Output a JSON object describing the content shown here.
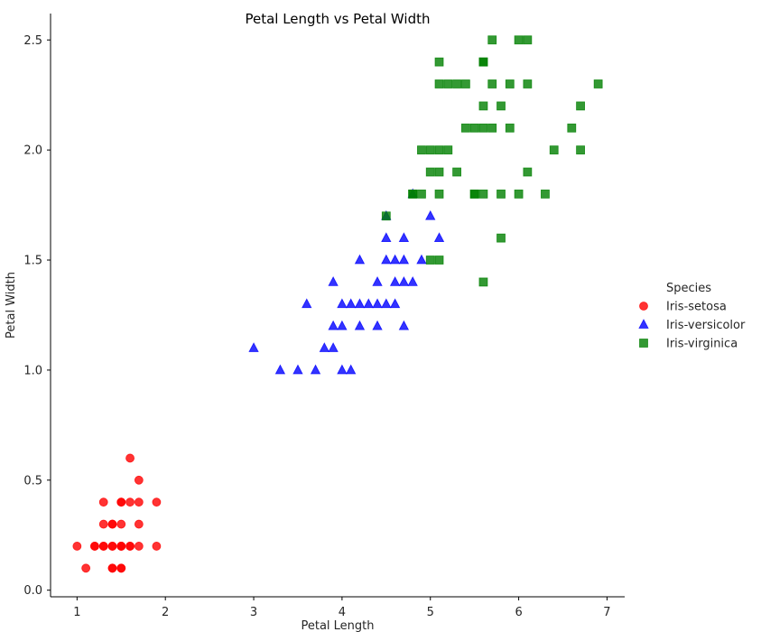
{
  "chart_data": {
    "type": "scatter",
    "title": "Petal Length vs Petal Width",
    "xlabel": "Petal Length",
    "ylabel": "Petal Width",
    "xlim": [
      0.7,
      7.2
    ],
    "ylim": [
      -0.03,
      2.62
    ],
    "xticks": [
      1,
      2,
      3,
      4,
      5,
      6,
      7
    ],
    "xtick_labels": [
      "1",
      "2",
      "3",
      "4",
      "5",
      "6",
      "7"
    ],
    "yticks": [
      0.0,
      0.5,
      1.0,
      1.5,
      2.0,
      2.5
    ],
    "ytick_labels": [
      "0.0",
      "0.5",
      "1.0",
      "1.5",
      "2.0",
      "2.5"
    ],
    "grid": false,
    "legend": {
      "title": "Species",
      "placement": "right"
    },
    "series": [
      {
        "name": "Iris-setosa",
        "marker": "circle",
        "color": "#ff0000",
        "points": [
          [
            1.0,
            0.2
          ],
          [
            1.1,
            0.1
          ],
          [
            1.2,
            0.2
          ],
          [
            1.2,
            0.2
          ],
          [
            1.3,
            0.2
          ],
          [
            1.3,
            0.3
          ],
          [
            1.3,
            0.4
          ],
          [
            1.3,
            0.2
          ],
          [
            1.4,
            0.2
          ],
          [
            1.4,
            0.3
          ],
          [
            1.4,
            0.1
          ],
          [
            1.4,
            0.2
          ],
          [
            1.4,
            0.1
          ],
          [
            1.4,
            0.3
          ],
          [
            1.5,
            0.2
          ],
          [
            1.5,
            0.4
          ],
          [
            1.5,
            0.1
          ],
          [
            1.5,
            0.2
          ],
          [
            1.5,
            0.3
          ],
          [
            1.5,
            0.4
          ],
          [
            1.5,
            0.1
          ],
          [
            1.5,
            0.2
          ],
          [
            1.6,
            0.2
          ],
          [
            1.6,
            0.6
          ],
          [
            1.6,
            0.4
          ],
          [
            1.6,
            0.2
          ],
          [
            1.7,
            0.4
          ],
          [
            1.7,
            0.5
          ],
          [
            1.7,
            0.3
          ],
          [
            1.7,
            0.2
          ],
          [
            1.9,
            0.2
          ],
          [
            1.9,
            0.4
          ]
        ]
      },
      {
        "name": "Iris-versicolor",
        "marker": "triangle",
        "color": "#0000ff",
        "points": [
          [
            3.0,
            1.1
          ],
          [
            3.3,
            1.0
          ],
          [
            3.5,
            1.0
          ],
          [
            3.6,
            1.3
          ],
          [
            3.7,
            1.0
          ],
          [
            3.8,
            1.1
          ],
          [
            3.9,
            1.4
          ],
          [
            3.9,
            1.1
          ],
          [
            3.9,
            1.2
          ],
          [
            4.0,
            1.0
          ],
          [
            4.0,
            1.3
          ],
          [
            4.0,
            1.2
          ],
          [
            4.1,
            1.3
          ],
          [
            4.1,
            1.0
          ],
          [
            4.2,
            1.3
          ],
          [
            4.2,
            1.5
          ],
          [
            4.2,
            1.2
          ],
          [
            4.3,
            1.3
          ],
          [
            4.4,
            1.4
          ],
          [
            4.4,
            1.3
          ],
          [
            4.4,
            1.2
          ],
          [
            4.5,
            1.5
          ],
          [
            4.5,
            1.3
          ],
          [
            4.5,
            1.6
          ],
          [
            4.5,
            1.7
          ],
          [
            4.6,
            1.3
          ],
          [
            4.6,
            1.4
          ],
          [
            4.6,
            1.5
          ],
          [
            4.7,
            1.4
          ],
          [
            4.7,
            1.2
          ],
          [
            4.7,
            1.5
          ],
          [
            4.7,
            1.6
          ],
          [
            4.8,
            1.4
          ],
          [
            4.8,
            1.8
          ],
          [
            4.9,
            1.5
          ],
          [
            5.0,
            1.7
          ],
          [
            5.1,
            1.6
          ]
        ]
      },
      {
        "name": "Iris-virginica",
        "marker": "square",
        "color": "#008000",
        "points": [
          [
            4.5,
            1.7
          ],
          [
            4.8,
            1.8
          ],
          [
            4.8,
            1.8
          ],
          [
            4.9,
            1.8
          ],
          [
            4.9,
            2.0
          ],
          [
            5.0,
            2.0
          ],
          [
            5.0,
            1.5
          ],
          [
            5.0,
            1.9
          ],
          [
            5.1,
            2.4
          ],
          [
            5.1,
            2.3
          ],
          [
            5.1,
            1.9
          ],
          [
            5.1,
            2.0
          ],
          [
            5.1,
            1.8
          ],
          [
            5.1,
            1.5
          ],
          [
            5.2,
            2.3
          ],
          [
            5.2,
            2.0
          ],
          [
            5.3,
            2.3
          ],
          [
            5.3,
            1.9
          ],
          [
            5.4,
            2.1
          ],
          [
            5.4,
            2.3
          ],
          [
            5.5,
            1.8
          ],
          [
            5.5,
            2.1
          ],
          [
            5.5,
            1.8
          ],
          [
            5.6,
            2.4
          ],
          [
            5.6,
            2.2
          ],
          [
            5.6,
            2.1
          ],
          [
            5.6,
            1.8
          ],
          [
            5.6,
            1.4
          ],
          [
            5.6,
            2.4
          ],
          [
            5.7,
            2.5
          ],
          [
            5.7,
            2.3
          ],
          [
            5.7,
            2.1
          ],
          [
            5.8,
            2.2
          ],
          [
            5.8,
            1.8
          ],
          [
            5.8,
            1.6
          ],
          [
            5.9,
            2.3
          ],
          [
            5.9,
            2.1
          ],
          [
            6.0,
            2.5
          ],
          [
            6.0,
            1.8
          ],
          [
            6.1,
            2.5
          ],
          [
            6.1,
            2.3
          ],
          [
            6.1,
            1.9
          ],
          [
            6.3,
            1.8
          ],
          [
            6.4,
            2.0
          ],
          [
            6.6,
            2.1
          ],
          [
            6.7,
            2.2
          ],
          [
            6.7,
            2.0
          ],
          [
            6.9,
            2.3
          ]
        ]
      }
    ]
  }
}
